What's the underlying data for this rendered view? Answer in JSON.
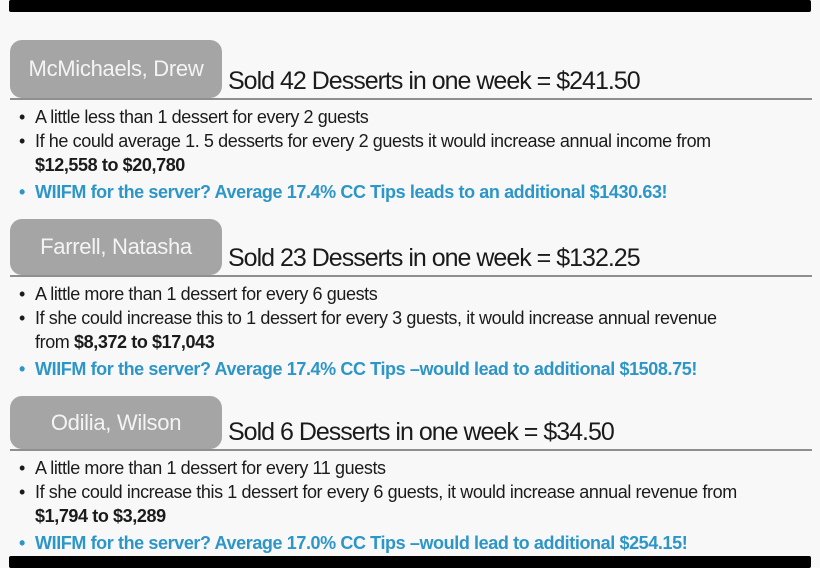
{
  "page": {
    "background": "#f8f8f8",
    "letterbox_bar_color": "#000000"
  },
  "colors": {
    "name_box_gray": "#a5a5a5",
    "name_text": "#f4f4f4",
    "body_text": "#1b1b1b",
    "divider_gray": "#8f8f8f",
    "wiifm_blue": "#2d96c8"
  },
  "sections": [
    {
      "name": "McMichaels, Drew",
      "heading": "Sold 42 Desserts in one week = $241.50",
      "bullets": [
        {
          "text": "A little less than 1 dessert for every 2 guests"
        },
        {
          "text": "If he could average 1. 5 desserts for every 2 guests it would increase annual income from",
          "line2_plain": "",
          "line2_bold": "$12,558 to $20,780"
        }
      ],
      "wiifm": "WIIFM for the server? Average 17.4% CC Tips leads to an additional $1430.63!"
    },
    {
      "name": "Farrell, Natasha",
      "heading": "Sold 23 Desserts in one week = $132.25",
      "bullets": [
        {
          "text": "A little more than 1 dessert for every 6 guests"
        },
        {
          "text": "If she could increase this to 1 dessert for every 3 guests, it would increase annual revenue",
          "line2_plain": "from ",
          "line2_bold": "$8,372 to $17,043"
        }
      ],
      "wiifm": "WIIFM for the server? Average 17.4% CC Tips –would lead to additional $1508.75!"
    },
    {
      "name": "Odilia, Wilson",
      "heading": "Sold 6 Desserts in one week = $34.50",
      "bullets": [
        {
          "text": "A little more than 1 dessert for every 11 guests"
        },
        {
          "text": "If she could increase this 1 dessert for every 6 guests, it would increase annual revenue from",
          "line2_plain": "",
          "line2_bold": "$1,794 to $3,289"
        }
      ],
      "wiifm": "WIIFM for the server? Average 17.0% CC Tips –would lead to additional $254.15!"
    }
  ]
}
